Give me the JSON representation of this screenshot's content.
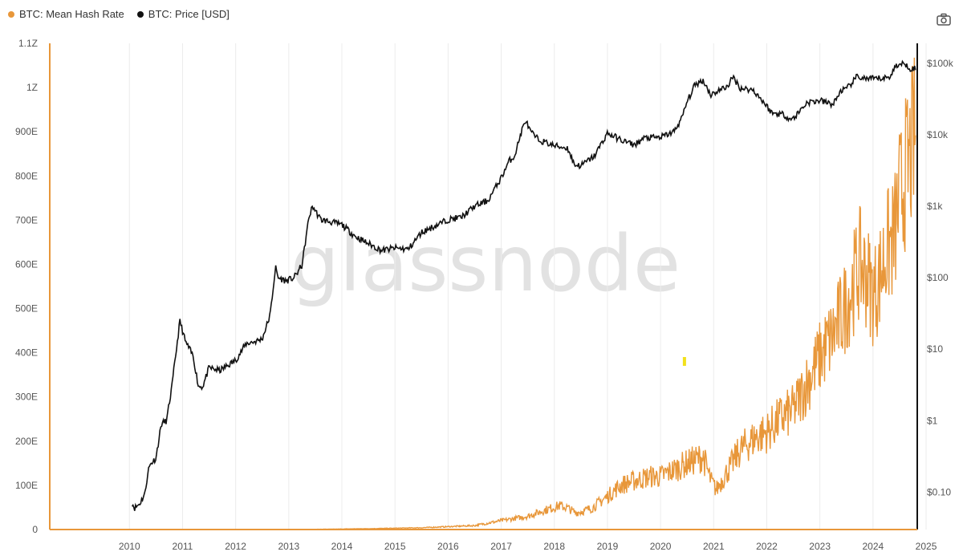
{
  "legend": [
    {
      "label": "BTC: Mean Hash Rate",
      "color": "#e8973a"
    },
    {
      "label": "BTC: Price [USD]",
      "color": "#111111"
    }
  ],
  "watermark": "glassnode",
  "camera_icon": "camera-icon",
  "colors": {
    "hash": "#e8973a",
    "price": "#111111",
    "grid": "#ececec",
    "marker": "#f2e11b"
  },
  "chart_data": {
    "type": "line",
    "x_ticks": [
      "2010",
      "2011",
      "2012",
      "2013",
      "2014",
      "2015",
      "2016",
      "2017",
      "2018",
      "2019",
      "2020",
      "2021",
      "2022",
      "2023",
      "2024",
      "2025"
    ],
    "xlim": [
      "2009-01-01",
      "2025-05-01"
    ],
    "y_left": {
      "label": "",
      "ticks": [
        "0",
        "100E",
        "200E",
        "300E",
        "400E",
        "500E",
        "600E",
        "700E",
        "800E",
        "900E",
        "1Z",
        "1.1Z"
      ],
      "ylim": [
        0,
        1.1
      ],
      "unit": "ZH/s"
    },
    "y_right": {
      "label": "",
      "scale": "log",
      "ticks": [
        "$0.10",
        "$1",
        "$10",
        "$100",
        "$1k",
        "$10k",
        "$100k"
      ],
      "ylim": [
        0.03,
        190000
      ]
    },
    "series": [
      {
        "name": "BTC: Mean Hash Rate",
        "axis": "left",
        "x": [
          2009.0,
          2012.0,
          2014.0,
          2015.0,
          2016.0,
          2017.0,
          2017.5,
          2018.0,
          2018.3,
          2018.6,
          2018.75,
          2018.9,
          2019.0,
          2019.2,
          2019.5,
          2019.75,
          2020.0,
          2020.3,
          2020.5,
          2020.75,
          2021.0,
          2021.3,
          2021.45,
          2021.55,
          2021.75,
          2022.0,
          2022.3,
          2022.5,
          2022.75,
          2023.0,
          2023.25,
          2023.5,
          2023.75,
          2024.0,
          2024.25,
          2024.4,
          2024.5,
          2024.6,
          2024.75,
          2024.9,
          2025.0,
          2025.1,
          2025.2,
          2025.3
        ],
        "y": [
          0.0,
          0.0001,
          0.0005,
          0.002,
          0.004,
          0.009,
          0.02,
          0.03,
          0.043,
          0.054,
          0.049,
          0.038,
          0.04,
          0.048,
          0.075,
          0.1,
          0.11,
          0.12,
          0.12,
          0.135,
          0.15,
          0.165,
          0.11,
          0.09,
          0.13,
          0.18,
          0.21,
          0.22,
          0.25,
          0.27,
          0.33,
          0.39,
          0.44,
          0.51,
          0.6,
          0.57,
          0.53,
          0.56,
          0.63,
          0.66,
          0.75,
          0.8,
          0.84,
          0.9
        ]
      },
      {
        "name": "BTC: Price [USD]",
        "axis": "right",
        "x": [
          2010.55,
          2010.6,
          2010.7,
          2010.8,
          2010.85,
          2010.9,
          2011.0,
          2011.1,
          2011.2,
          2011.3,
          2011.45,
          2011.55,
          2011.7,
          2011.8,
          2011.88,
          2012.0,
          2012.2,
          2012.5,
          2012.7,
          2012.9,
          2013.0,
          2013.15,
          2013.25,
          2013.3,
          2013.45,
          2013.6,
          2013.75,
          2013.88,
          2013.95,
          2014.1,
          2014.3,
          2014.5,
          2014.75,
          2015.0,
          2015.25,
          2015.5,
          2015.75,
          2016.0,
          2016.3,
          2016.5,
          2016.75,
          2017.0,
          2017.25,
          2017.5,
          2017.65,
          2017.75,
          2017.88,
          2017.96,
          2018.05,
          2018.2,
          2018.5,
          2018.75,
          2018.88,
          2019.0,
          2019.25,
          2019.5,
          2019.75,
          2020.0,
          2020.2,
          2020.5,
          2020.75,
          2020.9,
          2021.0,
          2021.15,
          2021.3,
          2021.45,
          2021.55,
          2021.75,
          2021.87,
          2022.0,
          2022.25,
          2022.45,
          2022.6,
          2022.8,
          2022.95,
          2023.0,
          2023.25,
          2023.5,
          2023.75,
          2023.9,
          2024.0,
          2024.2,
          2024.4,
          2024.6,
          2024.8,
          2024.95,
          2025.0,
          2025.1,
          2025.2,
          2025.3
        ],
        "y": [
          0.07,
          0.06,
          0.07,
          0.1,
          0.2,
          0.25,
          0.3,
          0.9,
          1.0,
          3.0,
          25,
          13,
          8,
          3.0,
          3.0,
          5.5,
          5.0,
          7.0,
          12.0,
          13.0,
          14,
          30,
          140,
          100,
          90,
          100,
          150,
          700,
          1000,
          650,
          600,
          550,
          380,
          300,
          240,
          260,
          250,
          430,
          550,
          650,
          700,
          1000,
          1200,
          2500,
          4300,
          5000,
          11000,
          16000,
          11000,
          8500,
          7000,
          6500,
          3800,
          3700,
          5000,
          10500,
          8500,
          7200,
          9000,
          9200,
          11000,
          17000,
          29000,
          50000,
          58000,
          36000,
          40000,
          47000,
          64000,
          45000,
          42000,
          28000,
          20000,
          19500,
          16500,
          16800,
          28000,
          30000,
          26500,
          42000,
          43000,
          65000,
          60000,
          61000,
          63000,
          96000,
          93000,
          100000,
          85000,
          84000
        ]
      }
    ],
    "grid": true,
    "legend_position": "top-left"
  }
}
